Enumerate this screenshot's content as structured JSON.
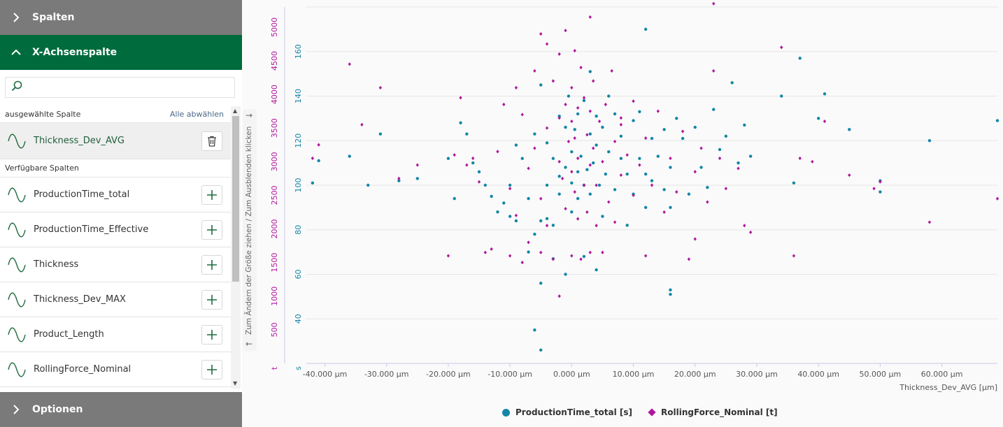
{
  "left_panel": {
    "spalten_label": "Spalten",
    "x_axis_label": "X-Achsenspalte",
    "search_placeholder": "",
    "selected_header": "ausgewählte Spalte",
    "deselect_all": "Alle abwählen",
    "selected_column": "Thickness_Dev_AVG",
    "available_header": "Verfügbare Spalten",
    "available_columns": [
      "ProductionTime_total",
      "ProductionTime_Effective",
      "Thickness",
      "Thickness_Dev_MAX",
      "Product_Length",
      "RollingForce_Nominal"
    ],
    "options_label": "Optionen",
    "resize_hint": "Zum Ändern der Größe ziehen / Zum Ausblenden klicken"
  },
  "colors": {
    "green": "#006b3c",
    "gray_header": "#7a7a7a",
    "series1": "#1386a8",
    "series2": "#b0189c"
  },
  "chart_data": {
    "type": "scatter",
    "xlabel": "Thickness_Dev_AVG [µm]",
    "xlim": [
      -43000,
      69000
    ],
    "x_ticks": [
      -40000,
      -30000,
      -20000,
      -10000,
      0,
      10000,
      20000,
      30000,
      40000,
      50000,
      60000
    ],
    "x_tick_labels": [
      "-40.000 µm",
      "-30.000 µm",
      "-20.000 µm",
      "-10.000 µm",
      "0.000 µm",
      "10.000 µm",
      "20.000 µm",
      "30.000 µm",
      "40.000 µm",
      "50.000 µm",
      "60.000 µm"
    ],
    "y1": {
      "unit_label": "s",
      "ylim": [
        20,
        180
      ],
      "ticks": [
        40,
        60,
        80,
        100,
        120,
        140,
        160
      ]
    },
    "y2": {
      "unit_label": "t",
      "ylim": [
        0,
        5300
      ],
      "ticks": [
        500,
        1000,
        1500,
        2000,
        2500,
        3000,
        3500,
        4000,
        4500,
        5000
      ]
    },
    "series": [
      {
        "name": "ProductionTime_total [s]",
        "axis": "y1",
        "marker": "circle",
        "points": [
          [
            -42000,
            101
          ],
          [
            -41000,
            111
          ],
          [
            -36000,
            113
          ],
          [
            -33000,
            100
          ],
          [
            -31000,
            123
          ],
          [
            -28000,
            102
          ],
          [
            -25000,
            103
          ],
          [
            -20000,
            112
          ],
          [
            -19000,
            94
          ],
          [
            -18000,
            128
          ],
          [
            -17000,
            123
          ],
          [
            -16000,
            110
          ],
          [
            -15000,
            106
          ],
          [
            -14000,
            100
          ],
          [
            -13000,
            95
          ],
          [
            -12000,
            88
          ],
          [
            -11000,
            92
          ],
          [
            -10000,
            86
          ],
          [
            -10000,
            100
          ],
          [
            -9000,
            118
          ],
          [
            -9000,
            84
          ],
          [
            -8000,
            112
          ],
          [
            -7000,
            94
          ],
          [
            -7000,
            70
          ],
          [
            -6000,
            123
          ],
          [
            -6000,
            78
          ],
          [
            -5000,
            56
          ],
          [
            -5000,
            84
          ],
          [
            -5000,
            145
          ],
          [
            -4000,
            100
          ],
          [
            -4000,
            119
          ],
          [
            -4000,
            85
          ],
          [
            -3000,
            112
          ],
          [
            -3000,
            67
          ],
          [
            -3000,
            82
          ],
          [
            -2000,
            131
          ],
          [
            -2000,
            104
          ],
          [
            -2000,
            96
          ],
          [
            -1000,
            108
          ],
          [
            -1000,
            126
          ],
          [
            -1000,
            60
          ],
          [
            -500,
            140
          ],
          [
            0,
            115
          ],
          [
            0,
            101
          ],
          [
            0,
            88
          ],
          [
            500,
            125
          ],
          [
            1000,
            106
          ],
          [
            1000,
            132
          ],
          [
            1000,
            94
          ],
          [
            1500,
            113
          ],
          [
            2000,
            138
          ],
          [
            2000,
            100
          ],
          [
            2000,
            68
          ],
          [
            2500,
            107
          ],
          [
            3000,
            123
          ],
          [
            3000,
            151
          ],
          [
            3000,
            96
          ],
          [
            3500,
            110
          ],
          [
            4000,
            118
          ],
          [
            4000,
            131
          ],
          [
            4000,
            62
          ],
          [
            4500,
            100
          ],
          [
            5000,
            86
          ],
          [
            5000,
            126
          ],
          [
            5500,
            105
          ],
          [
            6000,
            140
          ],
          [
            6000,
            115
          ],
          [
            7000,
            98
          ],
          [
            7000,
            132
          ],
          [
            8000,
            112
          ],
          [
            8000,
            122
          ],
          [
            9000,
            105
          ],
          [
            9000,
            82
          ],
          [
            10000,
            129
          ],
          [
            10000,
            96
          ],
          [
            11000,
            112
          ],
          [
            11000,
            133
          ],
          [
            12000,
            105
          ],
          [
            12000,
            90
          ],
          [
            13000,
            121
          ],
          [
            13000,
            102
          ],
          [
            14000,
            113
          ],
          [
            15000,
            125
          ],
          [
            15000,
            98
          ],
          [
            16000,
            108
          ],
          [
            16000,
            90
          ],
          [
            17000,
            130
          ],
          [
            18000,
            121
          ],
          [
            19000,
            96
          ],
          [
            20000,
            126
          ],
          [
            21000,
            108
          ],
          [
            22000,
            99
          ],
          [
            23000,
            134
          ],
          [
            24000,
            116
          ],
          [
            25000,
            122
          ],
          [
            27000,
            110
          ],
          [
            28000,
            127
          ],
          [
            29000,
            113
          ],
          [
            34000,
            140
          ],
          [
            36000,
            101
          ],
          [
            37000,
            157
          ],
          [
            40000,
            130
          ],
          [
            41000,
            141
          ],
          [
            45000,
            125
          ],
          [
            50000,
            102
          ],
          [
            50000,
            97
          ],
          [
            58000,
            120
          ],
          [
            69000,
            129
          ],
          [
            -5000,
            26
          ],
          [
            -6000,
            35
          ],
          [
            16000,
            51
          ],
          [
            16000,
            53
          ],
          [
            12000,
            170
          ],
          [
            26000,
            146
          ]
        ]
      },
      {
        "name": "RollingForce_Nominal [t]",
        "axis": "y2",
        "marker": "diamond",
        "points": [
          [
            -42000,
            3050
          ],
          [
            -41000,
            3250
          ],
          [
            -36000,
            4450
          ],
          [
            -34000,
            3550
          ],
          [
            -31000,
            4100
          ],
          [
            -28000,
            2750
          ],
          [
            -25000,
            2950
          ],
          [
            -20000,
            1600
          ],
          [
            -19000,
            3100
          ],
          [
            -18000,
            3950
          ],
          [
            -17000,
            2950
          ],
          [
            -16000,
            3050
          ],
          [
            -15000,
            2700
          ],
          [
            -14000,
            1650
          ],
          [
            -13000,
            1700
          ],
          [
            -12000,
            3150
          ],
          [
            -11000,
            3850
          ],
          [
            -10000,
            2600
          ],
          [
            -10000,
            1600
          ],
          [
            -9000,
            4100
          ],
          [
            -9000,
            2200
          ],
          [
            -8000,
            3700
          ],
          [
            -8000,
            1500
          ],
          [
            -7000,
            2900
          ],
          [
            -7000,
            1800
          ],
          [
            -6000,
            4350
          ],
          [
            -6000,
            3200
          ],
          [
            -5000,
            2450
          ],
          [
            -5000,
            1650
          ],
          [
            -4000,
            3500
          ],
          [
            -4000,
            4750
          ],
          [
            -4000,
            2050
          ],
          [
            -3000,
            4200
          ],
          [
            -3000,
            1550
          ],
          [
            -2000,
            3000
          ],
          [
            -2000,
            3650
          ],
          [
            -2000,
            4600
          ],
          [
            -1500,
            2750
          ],
          [
            -1000,
            4950
          ],
          [
            -1000,
            3850
          ],
          [
            -1000,
            2300
          ],
          [
            -500,
            3300
          ],
          [
            0,
            4100
          ],
          [
            0,
            3600
          ],
          [
            0,
            2850
          ],
          [
            0,
            1600
          ],
          [
            500,
            4650
          ],
          [
            500,
            3350
          ],
          [
            500,
            2550
          ],
          [
            1000,
            3800
          ],
          [
            1000,
            3050
          ],
          [
            1000,
            2150
          ],
          [
            1500,
            4400
          ],
          [
            1500,
            1550
          ],
          [
            2000,
            3950
          ],
          [
            2000,
            2650
          ],
          [
            2500,
            3400
          ],
          [
            2500,
            2250
          ],
          [
            3000,
            3750
          ],
          [
            3000,
            2950
          ],
          [
            3000,
            1650
          ],
          [
            3500,
            4200
          ],
          [
            3500,
            3200
          ],
          [
            4000,
            2650
          ],
          [
            4000,
            2050
          ],
          [
            4500,
            3600
          ],
          [
            5000,
            3000
          ],
          [
            5000,
            1650
          ],
          [
            5500,
            3850
          ],
          [
            6000,
            2400
          ],
          [
            6500,
            4350
          ],
          [
            7000,
            3300
          ],
          [
            7000,
            2100
          ],
          [
            8000,
            2800
          ],
          [
            8000,
            3650
          ],
          [
            9000,
            3100
          ],
          [
            10000,
            2500
          ],
          [
            10000,
            3900
          ],
          [
            11000,
            2950
          ],
          [
            12000,
            1600
          ],
          [
            12000,
            3350
          ],
          [
            13000,
            2650
          ],
          [
            14000,
            3750
          ],
          [
            15000,
            2250
          ],
          [
            16000,
            3050
          ],
          [
            17000,
            2550
          ],
          [
            18000,
            3450
          ],
          [
            19000,
            1550
          ],
          [
            20000,
            2850
          ],
          [
            20000,
            1850
          ],
          [
            21000,
            3200
          ],
          [
            22000,
            2400
          ],
          [
            23000,
            4350
          ],
          [
            24000,
            3050
          ],
          [
            25000,
            2600
          ],
          [
            27000,
            2900
          ],
          [
            28000,
            2050
          ],
          [
            29000,
            1950
          ],
          [
            34000,
            4700
          ],
          [
            36000,
            1600
          ],
          [
            37000,
            3050
          ],
          [
            39000,
            3000
          ],
          [
            41000,
            3600
          ],
          [
            45000,
            2800
          ],
          [
            49000,
            2600
          ],
          [
            50000,
            2700
          ],
          [
            58000,
            2100
          ],
          [
            69000,
            2450
          ],
          [
            -5000,
            4900
          ],
          [
            3000,
            5150
          ],
          [
            -2000,
            1000
          ],
          [
            23000,
            5350
          ],
          [
            8000,
            3550
          ]
        ]
      }
    ],
    "legend": [
      "ProductionTime_total [s]",
      "RollingForce_Nominal [t]"
    ]
  }
}
